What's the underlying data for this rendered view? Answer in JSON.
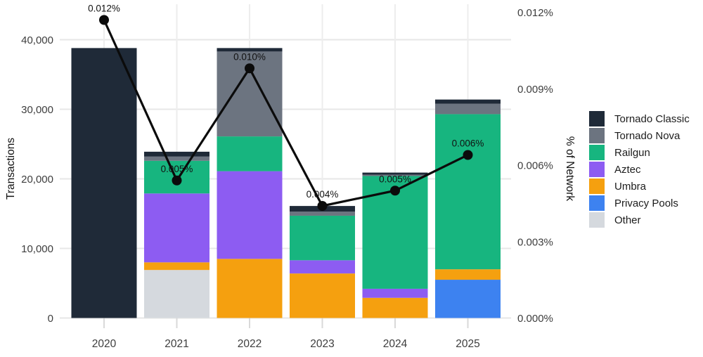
{
  "chart_data": {
    "type": "bar",
    "subtype": "stacked-bar-with-line",
    "title": "",
    "categories": [
      "2020",
      "2021",
      "2022",
      "2023",
      "2024",
      "2025"
    ],
    "series": [
      {
        "name": "Tornado Classic",
        "color": "#1f2a38",
        "values": [
          38800,
          700,
          500,
          800,
          300,
          600
        ]
      },
      {
        "name": "Tornado Nova",
        "color": "#6c7480",
        "values": [
          0,
          600,
          12200,
          600,
          200,
          1500
        ]
      },
      {
        "name": "Railgun",
        "color": "#17b57f",
        "values": [
          0,
          4700,
          5000,
          6400,
          16200,
          22300
        ]
      },
      {
        "name": "Aztec",
        "color": "#8d5cf2",
        "values": [
          0,
          9900,
          12600,
          1900,
          1300,
          0
        ]
      },
      {
        "name": "Umbra",
        "color": "#f5a00f",
        "values": [
          0,
          1100,
          8500,
          6400,
          2900,
          1500
        ]
      },
      {
        "name": "Privacy Pools",
        "color": "#3d82f0",
        "values": [
          0,
          0,
          0,
          0,
          0,
          5500
        ]
      },
      {
        "name": "Other",
        "color": "#d5d9de",
        "values": [
          0,
          6900,
          0,
          0,
          0,
          0
        ]
      }
    ],
    "stack_order_bottom_to_top": [
      "Other",
      "Privacy Pools",
      "Umbra",
      "Aztec",
      "Railgun",
      "Tornado Nova",
      "Tornado Classic"
    ],
    "bar_totals": [
      38800,
      23900,
      38800,
      16100,
      20900,
      31400
    ],
    "line_series": {
      "name": "% of Network",
      "color": "#0b0b0b",
      "values": [
        0.0117,
        0.0054,
        0.0098,
        0.0044,
        0.005,
        0.0064
      ],
      "labels": [
        "0.012%",
        "0.005%",
        "0.010%",
        "0.004%",
        "0.005%",
        "0.006%"
      ]
    },
    "left_axis": {
      "label": "Transactions",
      "ticks": [
        "0",
        "10,000",
        "20,000",
        "30,000",
        "40,000"
      ],
      "tick_values": [
        0,
        10000,
        20000,
        30000,
        40000
      ],
      "range": [
        0,
        45000
      ]
    },
    "right_axis": {
      "label": "% of Network",
      "ticks": [
        "0.000%",
        "0.003%",
        "0.006%",
        "0.009%",
        "0.012%"
      ],
      "tick_values": [
        0,
        0.003,
        0.006,
        0.009,
        0.012
      ],
      "range": [
        0,
        0.0123
      ]
    },
    "legend_position": "right",
    "grid": true,
    "background": "#ffffff",
    "gridline_color": "#e7e7e7",
    "tick_label_color": "#3d3d3d"
  }
}
